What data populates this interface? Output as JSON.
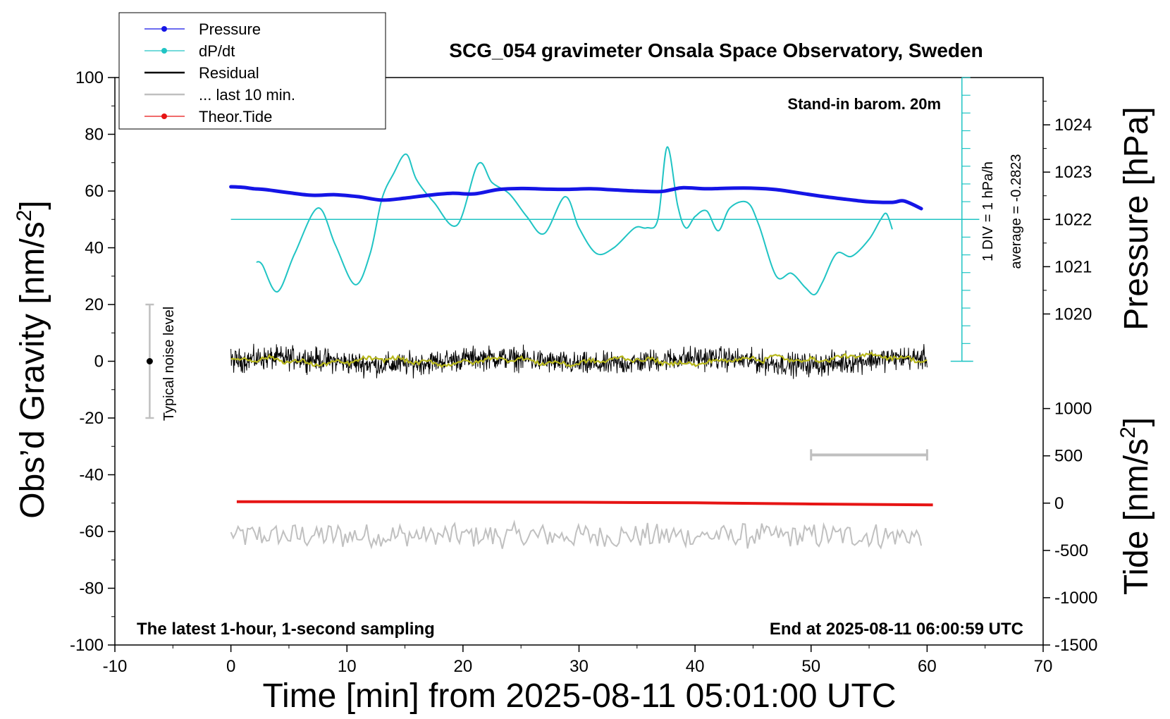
{
  "chart_data": {
    "type": "line",
    "title": "SCG_054 gravimeter Onsala Space Observatory, Sweden",
    "xlabel": "Time [min] from 2025-08-11 05:01:00 UTC",
    "ylabel_left": "Obs’d Gravity [nm/s",
    "ylabel_left_sup": "2",
    "ylabel_left_close": "]",
    "ylabel_right_top": "Pressure [hPa]",
    "ylabel_right_bottom": "Tide [nm/s",
    "ylabel_right_bottom_sup": "2",
    "ylabel_right_bottom_close": "]",
    "xlim": [
      -10,
      70
    ],
    "ylim_left": [
      -100,
      100
    ],
    "x_ticks": [
      "-10",
      "0",
      "10",
      "20",
      "30",
      "40",
      "50",
      "60",
      "70"
    ],
    "y_ticks_left": [
      "100",
      "80",
      "60",
      "40",
      "20",
      "0",
      "-20",
      "-40",
      "-60",
      "-80",
      "-100"
    ],
    "pressure_axis": {
      "ticks": [
        "1024",
        "1023",
        "1022",
        "1021",
        "1020"
      ],
      "range": [
        1019.0,
        1025.0
      ]
    },
    "tide_axis": {
      "ticks": [
        "1000",
        "500",
        "0",
        "-500",
        "-1000",
        "-1500"
      ],
      "range": [
        -1500,
        1500
      ]
    },
    "annotations": {
      "stand_in": "Stand-in barom. 20m",
      "latest": "The latest 1-hour, 1-second sampling",
      "end_at": "End at 2025-08-11 06:00:59 UTC",
      "div_label": "1 DIV = 1 hPa/h",
      "average_label": "average = -0.2823",
      "noise_label": "Typical noise level"
    },
    "legend": {
      "placement": "top-left",
      "entries": [
        {
          "name": "Pressure",
          "color": "#1515e6",
          "marker": true
        },
        {
          "name": "dP/dt",
          "color": "#20c4c4",
          "marker": true
        },
        {
          "name": "Residual",
          "color": "#000000",
          "marker": false
        },
        {
          "name": "... last 10 min.",
          "color": "#c0c0c0",
          "marker": false
        },
        {
          "name": "Theor.Tide",
          "color": "#e61414",
          "marker": true
        }
      ]
    },
    "series": [
      {
        "name": "Pressure",
        "color": "#1515e6",
        "x": [
          0,
          1,
          2,
          3,
          5,
          7,
          9,
          11,
          13,
          15,
          17,
          19,
          21,
          23,
          25,
          27,
          29,
          31,
          33,
          35,
          37,
          38,
          39,
          41,
          43,
          45,
          47,
          49,
          51,
          53,
          55,
          57,
          58,
          59.5
        ],
        "values": [
          61.5,
          61.3,
          60.8,
          60.5,
          59.4,
          58.5,
          58.7,
          58.0,
          56.8,
          57.5,
          58.5,
          59.2,
          59.0,
          60.5,
          60.9,
          60.7,
          60.6,
          60.8,
          60.4,
          60.0,
          59.8,
          60.5,
          61.2,
          60.8,
          61.0,
          61.0,
          60.5,
          59.3,
          58.1,
          57.1,
          56.2,
          56.0,
          56.5,
          53.8
        ]
      },
      {
        "name": "dP/dt",
        "color": "#20c4c4",
        "x": [
          2.2,
          2.7,
          4,
          5.5,
          7.5,
          9,
          10.7,
          12,
          13,
          14,
          15.1,
          16,
          17.5,
          19.5,
          21.3,
          22.5,
          24,
          25.5,
          27,
          28.8,
          30,
          31.5,
          33,
          34.8,
          35.8,
          36.8,
          37.6,
          38.5,
          39.2,
          40,
          41,
          42,
          43,
          44.5,
          45.5,
          47,
          48.3,
          49.5,
          50.3,
          51,
          52.2,
          53.5,
          55,
          56,
          56.5,
          57
        ],
        "values": [
          35,
          34,
          24.5,
          38,
          54,
          41,
          27,
          38,
          57,
          66,
          73,
          64,
          56,
          48,
          69.5,
          63,
          59,
          51,
          45,
          58,
          47,
          38,
          40,
          47,
          47,
          50,
          75.5,
          55,
          47,
          51,
          53,
          46,
          54,
          56,
          48,
          30,
          31,
          26,
          23.5,
          28,
          38,
          37,
          43,
          50,
          52,
          46.5
        ]
      },
      {
        "name": "Residual",
        "color": "#000000",
        "x_start": 0,
        "x_end": 60,
        "center": 0,
        "amplitude": 6
      },
      {
        "name": "... last 10 min.",
        "color": "#c0c0c0",
        "x_start": 0,
        "x_end": 59.5,
        "center": -61.5,
        "amplitude": 4
      },
      {
        "name": "Theor.Tide",
        "color": "#e61414",
        "x": [
          0.5,
          20,
          30,
          40,
          50,
          60.5
        ],
        "values": [
          -49.5,
          -49.6,
          -49.7,
          -49.9,
          -50.3,
          -50.6
        ]
      },
      {
        "name": "Residual (smoothed)",
        "color": "#b8b81c",
        "x_start": 0,
        "x_end": 60,
        "center": 0,
        "amplitude": 1.5
      }
    ],
    "noise_bar": {
      "x": -7,
      "center": 0,
      "low": -20,
      "high": 20
    },
    "scale_bar": {
      "x1": 50,
      "x2": 60,
      "y": -33
    },
    "dpdt_zero_line": 50,
    "dpdt_div_axis": {
      "x": 63,
      "y_top": 100,
      "y_bottom": 0
    }
  }
}
